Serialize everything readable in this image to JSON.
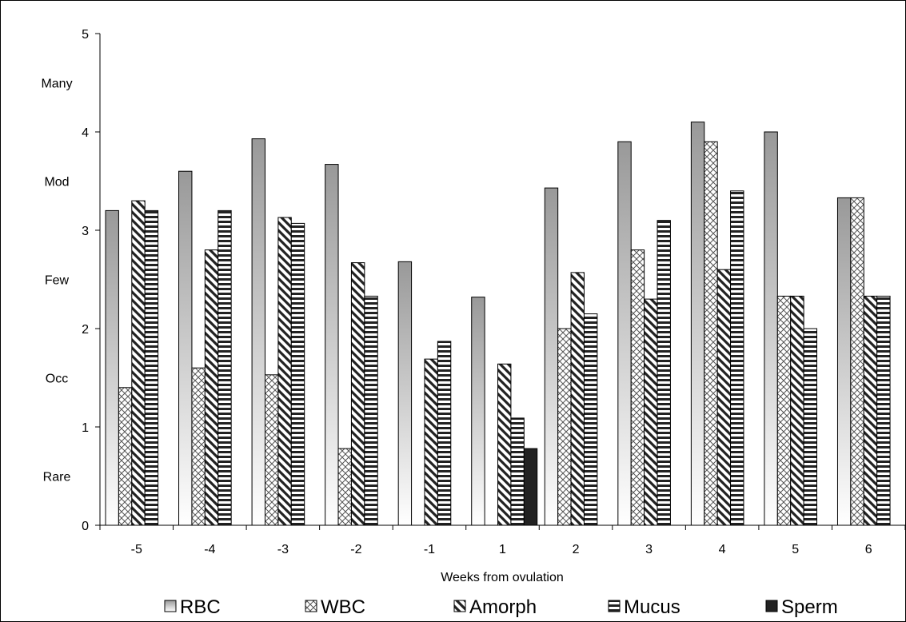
{
  "chart_data": {
    "type": "bar",
    "xlabel": "Weeks from ovulation",
    "ylabel": "",
    "title": "",
    "ylim": [
      0,
      5
    ],
    "yticks": [
      0,
      1,
      2,
      3,
      4,
      5
    ],
    "categories": [
      "-5",
      "-4",
      "-3",
      "-2",
      "-1",
      "1",
      "2",
      "3",
      "4",
      "5",
      "6"
    ],
    "series": [
      {
        "name": "RBC",
        "pattern": "gradient",
        "values": [
          3.2,
          3.6,
          3.93,
          3.67,
          2.68,
          2.32,
          3.43,
          3.9,
          4.1,
          4.0,
          3.33
        ]
      },
      {
        "name": "WBC",
        "pattern": "crosshatch",
        "values": [
          1.4,
          1.6,
          1.53,
          0.78,
          null,
          null,
          2.0,
          2.8,
          3.9,
          2.33,
          3.33
        ]
      },
      {
        "name": "Amorph",
        "pattern": "diagonal",
        "values": [
          3.3,
          2.8,
          3.13,
          2.67,
          1.69,
          1.64,
          2.57,
          2.3,
          2.6,
          2.33,
          2.33
        ]
      },
      {
        "name": "Mucus",
        "pattern": "horizontal",
        "values": [
          3.2,
          3.2,
          3.07,
          2.33,
          1.87,
          1.09,
          2.15,
          3.1,
          3.4,
          2.0,
          2.33
        ]
      },
      {
        "name": "Sperm",
        "pattern": "solid",
        "values": [
          null,
          null,
          null,
          null,
          null,
          0.78,
          null,
          null,
          null,
          null,
          null
        ]
      }
    ],
    "annotations": [
      {
        "text": "Many",
        "y": 4.5
      },
      {
        "text": "Mod",
        "y": 3.5
      },
      {
        "text": "Few",
        "y": 2.5
      },
      {
        "text": "Occ",
        "y": 1.5
      },
      {
        "text": "Rare",
        "y": 0.5
      }
    ],
    "grid": false,
    "legend_position": "bottom"
  }
}
